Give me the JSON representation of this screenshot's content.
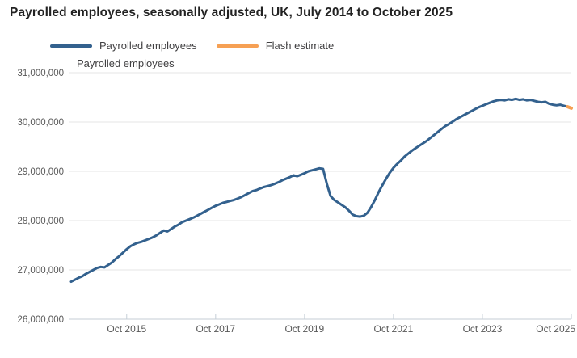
{
  "title": "Payrolled employees, seasonally adjusted, UK, July 2014 to October 2025",
  "legend": [
    {
      "label": "Payrolled employees",
      "color": "#33618E"
    },
    {
      "label": "Flash estimate",
      "color": "#F6A054"
    }
  ],
  "colors": {
    "payrolled_line": "#33618E",
    "flash_line": "#F6A054",
    "gridline": "#E6E6E6",
    "axis_line": "#C5CED6",
    "tick_text": "#595959",
    "title_text": "#222222"
  },
  "chart_data": {
    "type": "line",
    "title": "Payrolled employees, seasonally adjusted, UK, July 2014 to October 2025",
    "y_axis_title": "Payrolled employees",
    "x_start": "July 2014",
    "x_end": "October 2025",
    "x_unit": "month",
    "ylim": [
      26000000,
      31000000
    ],
    "grid": "horizontal",
    "legend_position": "top",
    "y_ticks": [
      {
        "value": 31000000,
        "label": "31,000,000"
      },
      {
        "value": 30000000,
        "label": "30,000,000"
      },
      {
        "value": 29000000,
        "label": "29,000,000"
      },
      {
        "value": 28000000,
        "label": "28,000,000"
      },
      {
        "value": 27000000,
        "label": "27,000,000"
      },
      {
        "value": 26000000,
        "label": "26,000,000"
      }
    ],
    "x_ticks": [
      {
        "label": "Oct 2015",
        "month_index": 15
      },
      {
        "label": "Oct 2017",
        "month_index": 39
      },
      {
        "label": "Oct 2019",
        "month_index": 63
      },
      {
        "label": "Oct 2021",
        "month_index": 87
      },
      {
        "label": "Oct 2023",
        "month_index": 111
      },
      {
        "label": "Oct 2025",
        "month_index": 135
      }
    ],
    "series": [
      {
        "name": "Payrolled employees",
        "color": "#33618E",
        "start_month": "2014-07",
        "end_month": "2025-09",
        "values": [
          26760000,
          26800000,
          26840000,
          26870000,
          26920000,
          26960000,
          27000000,
          27040000,
          27060000,
          27050000,
          27100000,
          27150000,
          27220000,
          27280000,
          27350000,
          27420000,
          27480000,
          27520000,
          27550000,
          27570000,
          27600000,
          27630000,
          27660000,
          27700000,
          27750000,
          27800000,
          27780000,
          27830000,
          27880000,
          27920000,
          27970000,
          28000000,
          28030000,
          28060000,
          28100000,
          28140000,
          28180000,
          28220000,
          28260000,
          28300000,
          28330000,
          28360000,
          28380000,
          28400000,
          28420000,
          28450000,
          28480000,
          28520000,
          28560000,
          28600000,
          28620000,
          28650000,
          28680000,
          28700000,
          28720000,
          28750000,
          28780000,
          28820000,
          28850000,
          28880000,
          28920000,
          28900000,
          28930000,
          28960000,
          29000000,
          29020000,
          29040000,
          29060000,
          29050000,
          28750000,
          28500000,
          28420000,
          28370000,
          28320000,
          28270000,
          28200000,
          28120000,
          28090000,
          28080000,
          28100000,
          28160000,
          28280000,
          28420000,
          28580000,
          28720000,
          28850000,
          28970000,
          29070000,
          29150000,
          29220000,
          29300000,
          29360000,
          29420000,
          29470000,
          29520000,
          29570000,
          29620000,
          29680000,
          29740000,
          29800000,
          29860000,
          29920000,
          29960000,
          30010000,
          30060000,
          30100000,
          30140000,
          30180000,
          30220000,
          30260000,
          30300000,
          30330000,
          30360000,
          30390000,
          30420000,
          30440000,
          30450000,
          30440000,
          30460000,
          30450000,
          30470000,
          30450000,
          30460000,
          30440000,
          30450000,
          30430000,
          30410000,
          30400000,
          30410000,
          30370000,
          30350000,
          30340000,
          30350000,
          30330000,
          30310000
        ]
      },
      {
        "name": "Flash estimate",
        "color": "#F6A054",
        "month": "2025-10",
        "month_index": 135,
        "value": 30280000
      }
    ]
  }
}
